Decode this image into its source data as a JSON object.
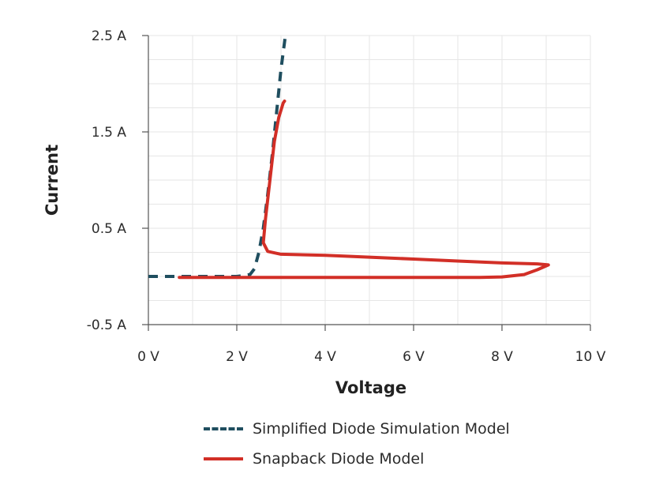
{
  "chart_data": {
    "type": "line",
    "xlabel": "Voltage",
    "ylabel": "Current",
    "xlim": [
      0,
      10
    ],
    "ylim": [
      -0.5,
      2.5
    ],
    "x_ticks": [
      "0 V",
      "2 V",
      "4 V",
      "6 V",
      "8 V",
      "10 V"
    ],
    "y_ticks": [
      "2.5 A",
      "1.5 A",
      "0.5 A",
      "-0.5 A"
    ],
    "grid": true,
    "legend_position": "bottom",
    "series": [
      {
        "name": "Simplified Diode Simulation Model",
        "style": "dashed",
        "color": "#1f4e5f",
        "x": [
          0,
          0.5,
          1.0,
          1.5,
          2.0,
          2.3,
          2.4,
          2.5,
          2.6,
          2.7,
          2.8,
          2.9,
          3.0,
          3.1
        ],
        "y": [
          0.0,
          0.0,
          0.0,
          0.0,
          0.0,
          0.02,
          0.08,
          0.25,
          0.5,
          0.85,
          1.25,
          1.7,
          2.15,
          2.5
        ]
      },
      {
        "name": "Snapback Diode Model",
        "style": "solid",
        "color": "#d22f27",
        "x": [
          0.7,
          1.5,
          2.0,
          2.5,
          3.0,
          4.0,
          5.0,
          6.0,
          7.0,
          7.5,
          8.0,
          8.5,
          8.8,
          9.05,
          8.8,
          8.0,
          7.0,
          6.0,
          5.0,
          4.0,
          3.0,
          2.7,
          2.6,
          2.65,
          2.75,
          2.85,
          2.95,
          3.05,
          3.08
        ],
        "y": [
          -0.01,
          -0.01,
          -0.01,
          -0.01,
          -0.01,
          -0.01,
          -0.01,
          -0.01,
          -0.01,
          -0.01,
          -0.005,
          0.02,
          0.07,
          0.12,
          0.13,
          0.14,
          0.16,
          0.18,
          0.2,
          0.22,
          0.23,
          0.26,
          0.35,
          0.6,
          1.0,
          1.4,
          1.65,
          1.8,
          1.82
        ]
      }
    ]
  }
}
